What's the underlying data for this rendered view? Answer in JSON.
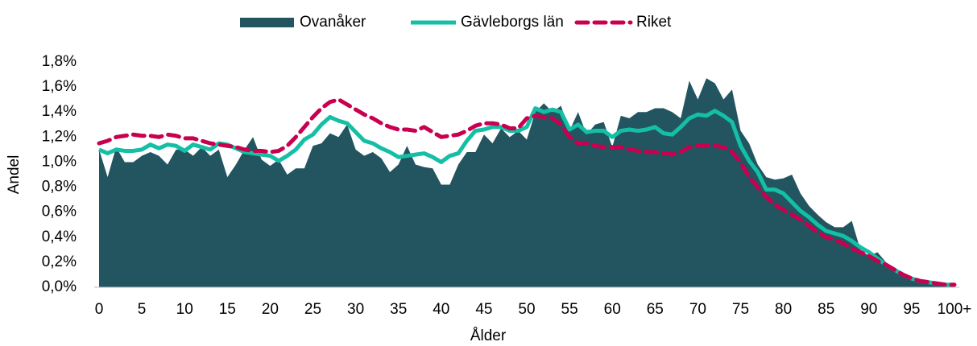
{
  "chart_data": {
    "type": "line",
    "x_label": "Ålder",
    "y_label": "Andel",
    "legend": "top",
    "categories": [
      "0",
      null,
      null,
      null,
      null,
      "5",
      null,
      null,
      null,
      null,
      "10",
      null,
      null,
      null,
      null,
      "15",
      null,
      null,
      null,
      null,
      "20",
      null,
      null,
      null,
      null,
      "25",
      null,
      null,
      null,
      null,
      "30",
      null,
      null,
      null,
      null,
      "35",
      null,
      null,
      null,
      null,
      "40",
      null,
      null,
      null,
      null,
      "45",
      null,
      null,
      null,
      null,
      "50",
      null,
      null,
      null,
      null,
      "55",
      null,
      null,
      null,
      null,
      "60",
      null,
      null,
      null,
      null,
      "65",
      null,
      null,
      null,
      null,
      "70",
      null,
      null,
      null,
      null,
      "75",
      null,
      null,
      null,
      null,
      "80",
      null,
      null,
      null,
      null,
      "85",
      null,
      null,
      null,
      null,
      "90",
      null,
      null,
      null,
      null,
      "95",
      null,
      null,
      null,
      null,
      "100+"
    ],
    "ylim": [
      0,
      1.8
    ],
    "yticks": [
      {
        "value": 0,
        "label": "0,0%"
      },
      {
        "value": 0.2,
        "label": "0,2%"
      },
      {
        "value": 0.4,
        "label": "0,4%"
      },
      {
        "value": 0.6,
        "label": "0,6%"
      },
      {
        "value": 0.8,
        "label": "0,8%"
      },
      {
        "value": 1.0,
        "label": "1,0%"
      },
      {
        "value": 1.2,
        "label": "1,2%"
      },
      {
        "value": 1.4,
        "label": "1,4%"
      },
      {
        "value": 1.6,
        "label": "1,6%"
      },
      {
        "value": 1.8,
        "label": "1,8%"
      }
    ],
    "grid": false,
    "series": [
      {
        "name": "Ovanåker",
        "type": "area",
        "color": "#225560",
        "values": [
          1.1,
          0.88,
          1.12,
          1.0,
          1.0,
          1.05,
          1.08,
          1.05,
          0.98,
          1.1,
          1.1,
          1.05,
          1.12,
          1.05,
          1.1,
          0.88,
          0.98,
          1.1,
          1.2,
          1.02,
          0.97,
          1.02,
          0.9,
          0.95,
          0.95,
          1.13,
          1.15,
          1.23,
          1.2,
          1.3,
          1.1,
          1.05,
          1.08,
          1.03,
          0.92,
          0.98,
          1.13,
          0.98,
          0.96,
          0.95,
          0.82,
          0.82,
          0.98,
          1.08,
          1.08,
          1.22,
          1.15,
          1.27,
          1.2,
          1.25,
          1.18,
          1.4,
          1.47,
          1.4,
          1.45,
          1.25,
          1.4,
          1.22,
          1.3,
          1.32,
          1.12,
          1.37,
          1.35,
          1.4,
          1.4,
          1.43,
          1.43,
          1.4,
          1.35,
          1.65,
          1.5,
          1.67,
          1.63,
          1.5,
          1.58,
          1.25,
          1.15,
          0.98,
          0.88,
          0.86,
          0.87,
          0.9,
          0.75,
          0.65,
          0.58,
          0.52,
          0.48,
          0.48,
          0.53,
          0.3,
          0.25,
          0.28,
          0.2,
          0.14,
          0.1,
          0.07,
          0.05,
          0.04,
          0.03,
          0.02,
          0.02
        ]
      },
      {
        "name": "Gävleborgs län",
        "type": "line",
        "color": "#14bfa5",
        "values": [
          1.1,
          1.07,
          1.1,
          1.09,
          1.09,
          1.1,
          1.14,
          1.11,
          1.14,
          1.13,
          1.09,
          1.14,
          1.12,
          1.1,
          1.15,
          1.14,
          1.11,
          1.08,
          1.07,
          1.06,
          1.05,
          1.01,
          1.05,
          1.1,
          1.18,
          1.22,
          1.3,
          1.36,
          1.33,
          1.31,
          1.24,
          1.17,
          1.15,
          1.11,
          1.08,
          1.04,
          1.05,
          1.06,
          1.07,
          1.04,
          1.0,
          1.05,
          1.07,
          1.17,
          1.25,
          1.26,
          1.28,
          1.28,
          1.25,
          1.25,
          1.28,
          1.43,
          1.4,
          1.42,
          1.4,
          1.26,
          1.3,
          1.24,
          1.25,
          1.25,
          1.2,
          1.25,
          1.26,
          1.25,
          1.26,
          1.28,
          1.23,
          1.22,
          1.28,
          1.35,
          1.38,
          1.37,
          1.41,
          1.37,
          1.32,
          1.13,
          1.01,
          0.92,
          0.78,
          0.78,
          0.75,
          0.68,
          0.61,
          0.56,
          0.5,
          0.45,
          0.43,
          0.41,
          0.37,
          0.32,
          0.28,
          0.23,
          0.18,
          0.14,
          0.1,
          0.07,
          0.05,
          0.04,
          0.03,
          0.02,
          0.02
        ]
      },
      {
        "name": "Riket",
        "type": "line",
        "dashed": true,
        "color": "#c8004f",
        "values": [
          1.15,
          1.17,
          1.2,
          1.21,
          1.22,
          1.21,
          1.21,
          1.2,
          1.22,
          1.21,
          1.19,
          1.19,
          1.17,
          1.15,
          1.14,
          1.13,
          1.12,
          1.1,
          1.09,
          1.09,
          1.08,
          1.09,
          1.13,
          1.2,
          1.28,
          1.36,
          1.43,
          1.48,
          1.5,
          1.46,
          1.42,
          1.38,
          1.35,
          1.31,
          1.28,
          1.26,
          1.26,
          1.25,
          1.28,
          1.24,
          1.2,
          1.21,
          1.22,
          1.25,
          1.29,
          1.31,
          1.31,
          1.3,
          1.27,
          1.27,
          1.35,
          1.37,
          1.36,
          1.35,
          1.3,
          1.2,
          1.15,
          1.15,
          1.13,
          1.12,
          1.12,
          1.12,
          1.1,
          1.09,
          1.08,
          1.08,
          1.07,
          1.06,
          1.08,
          1.12,
          1.13,
          1.13,
          1.13,
          1.12,
          1.08,
          1.0,
          0.88,
          0.8,
          0.72,
          0.66,
          0.62,
          0.58,
          0.54,
          0.49,
          0.44,
          0.4,
          0.38,
          0.35,
          0.31,
          0.28,
          0.25,
          0.21,
          0.18,
          0.14,
          0.1,
          0.07,
          0.05,
          0.04,
          0.03,
          0.02,
          0.02
        ]
      }
    ]
  }
}
